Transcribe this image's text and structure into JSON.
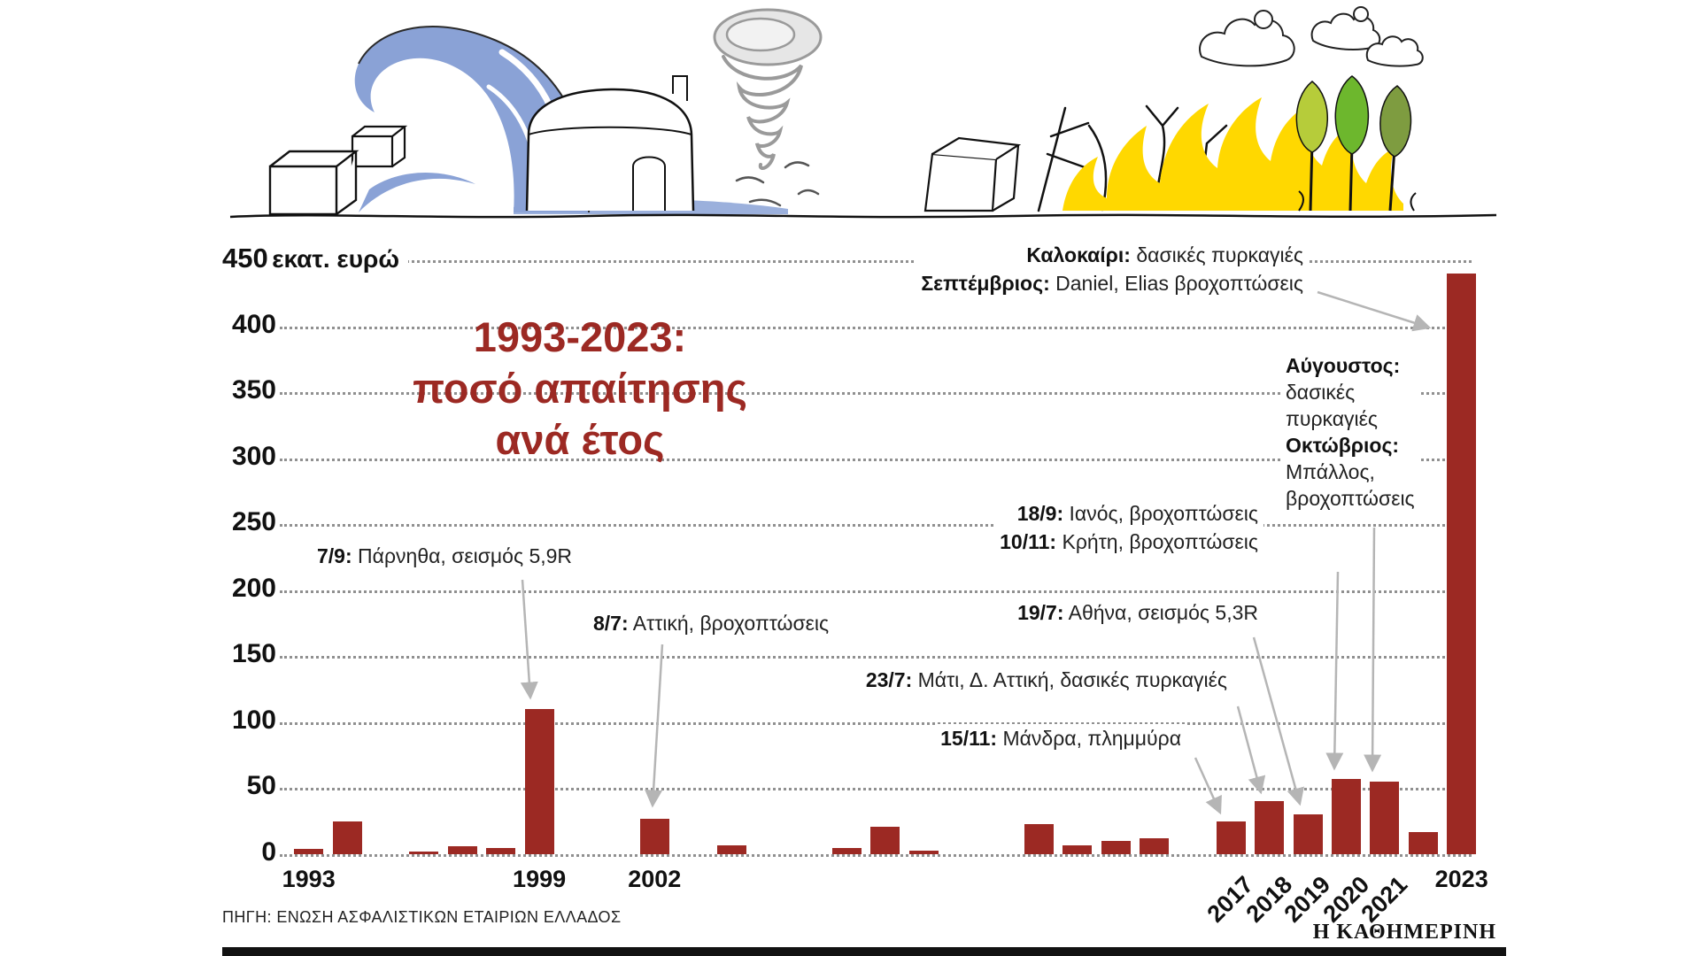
{
  "accent_color": "#9c2923",
  "y_axis": {
    "top_value": "450",
    "top_unit": "εκατ. ευρώ",
    "ticks": [
      "400",
      "350",
      "300",
      "250",
      "200",
      "150",
      "100",
      "50",
      "0"
    ]
  },
  "title": {
    "line1": "1993-2023:",
    "line2": "ποσό απαίτησης",
    "line3": "ανά έτος"
  },
  "chart_data": {
    "type": "bar",
    "title": "1993-2023: ποσό απαίτησης ανά έτος",
    "xlabel": "",
    "ylabel": "εκατ. ευρώ",
    "ylim": [
      0,
      450
    ],
    "grid": "dotted-horizontal",
    "legend": "none",
    "bar_color": "#9c2923",
    "years": [
      1993,
      1994,
      1995,
      1996,
      1997,
      1998,
      1999,
      2000,
      2001,
      2002,
      2003,
      2004,
      2005,
      2006,
      2007,
      2008,
      2009,
      2010,
      2011,
      2012,
      2013,
      2014,
      2015,
      2016,
      2017,
      2018,
      2019,
      2020,
      2021,
      2022,
      2023
    ],
    "values": [
      4,
      25,
      0,
      2,
      6,
      5,
      110,
      0,
      0,
      27,
      0,
      7,
      0,
      0,
      5,
      21,
      3,
      0,
      0,
      23,
      7,
      10,
      12,
      0,
      25,
      40,
      30,
      57,
      55,
      17,
      440
    ]
  },
  "x_labels": {
    "horizontal": [
      "1993",
      "1999",
      "2002",
      "2023"
    ],
    "rotated": [
      "2017",
      "2018",
      "2019",
      "2020",
      "2021"
    ]
  },
  "annotations": {
    "y1999": {
      "bold": "7/9:",
      "rest": " Πάρνηθα, σεισμός 5,9R"
    },
    "y2002": {
      "bold": "8/7:",
      "rest": " Αττική, βροχοπτώσεις"
    },
    "y2017": {
      "bold": "15/11:",
      "rest": " Μάνδρα, πλημμύρα"
    },
    "y2018": {
      "bold": "23/7:",
      "rest": " Μάτι, Δ. Αττική, δασικές πυρκαγιές"
    },
    "y2019": {
      "bold": "19/7:",
      "rest": " Αθήνα, σεισμός 5,3R"
    },
    "y2020": {
      "line1_bold": "18/9:",
      "line1_rest": " Ιανός, βροχοπτώσεις",
      "line2_bold": "10/11:",
      "line2_rest": " Κρήτη, βροχοπτώσεις"
    },
    "y2021": {
      "line1": "Αύγουστος:",
      "line2": "δασικές",
      "line3": "πυρκαγιές",
      "line4": "Οκτώβριος:",
      "line5": "Μπάλλος,",
      "line6": "βροχοπτώσεις"
    },
    "y2023": {
      "line1_bold": "Καλοκαίρι:",
      "line1_rest": " δασικές πυρκαγιές",
      "line2_bold": "Σεπτέμβριος:",
      "line2_rest": " Daniel, Elias βροχοπτώσεις"
    }
  },
  "footer": {
    "source": "ΠΗΓΗ: ΕΝΩΣΗ ΑΣΦΑΛΙΣΤΙΚΩΝ ΕΤΑΙΡΙΩΝ ΕΛΛΑΔΟΣ",
    "logo": "Η ΚΑΘΗΜΕΡΙΝΗ"
  }
}
